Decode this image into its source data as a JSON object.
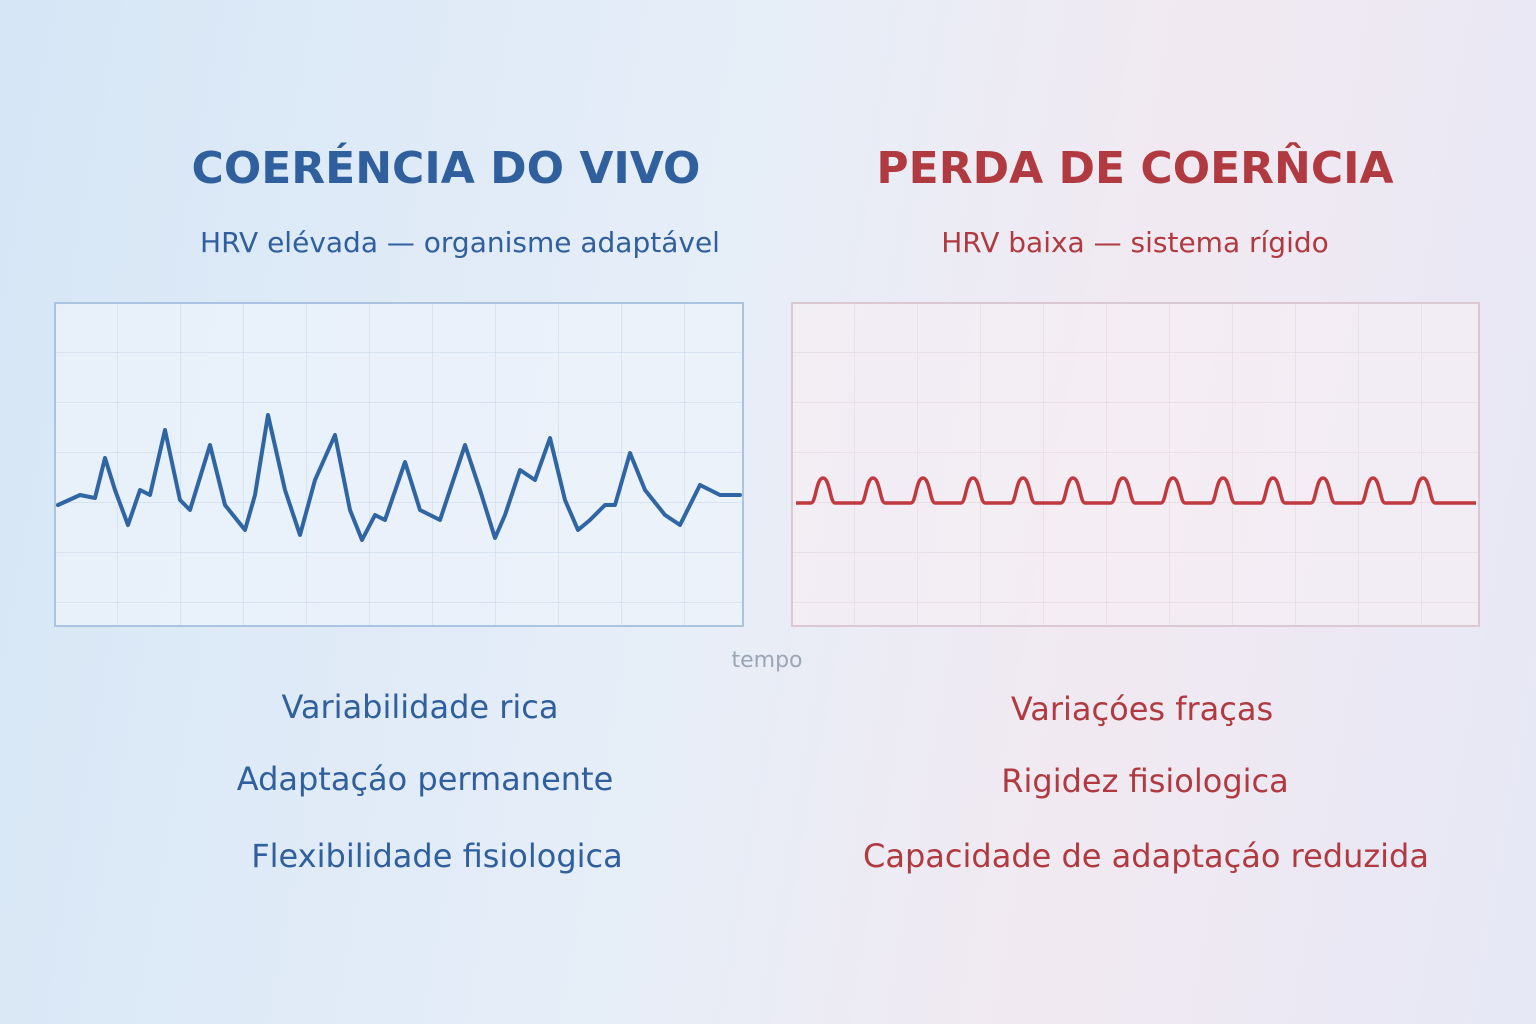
{
  "left": {
    "title": "COERÉNCIA DO VIVO",
    "subtitle": "HRV elévada — organisme adaptável",
    "points": [
      "Variabilidade rica",
      "Adaptaçáo permanente",
      "Flexibilidade fisiologica"
    ]
  },
  "right": {
    "title": "PERDA DE COERN̂CIA",
    "subtitle": "HRV baixa — sistema rígido",
    "points": [
      "Variaçóes fraças",
      "Rigidez fisiologica",
      "Capacidade de adaptaçáo reduzida"
    ]
  },
  "axis_label": "tempo"
}
